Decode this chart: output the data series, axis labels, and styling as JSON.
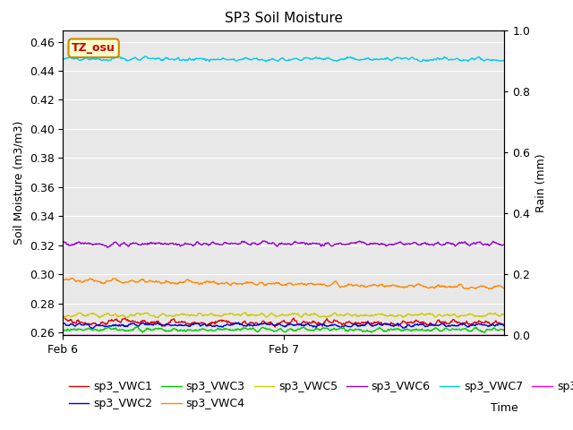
{
  "title": "SP3 Soil Moisture",
  "xlabel": "Time",
  "ylabel_left": "Soil Moisture (m3/m3)",
  "ylabel_right": "Rain (mm)",
  "ylim_left": [
    0.258,
    0.468
  ],
  "ylim_right": [
    0.0,
    1.0
  ],
  "yticks_left": [
    0.26,
    0.28,
    0.3,
    0.32,
    0.34,
    0.36,
    0.38,
    0.4,
    0.42,
    0.44,
    0.46
  ],
  "yticks_right": [
    0.0,
    0.2,
    0.4,
    0.6,
    0.8,
    1.0
  ],
  "xtick_positions": [
    0.0,
    0.5
  ],
  "xtick_labels": [
    "Feb 6",
    "Feb 7"
  ],
  "n_points": 800,
  "series": {
    "sp3_VWC1": {
      "color": "#dd0000",
      "mean": 0.267,
      "noise_amp": 0.003
    },
    "sp3_VWC2": {
      "color": "#0000dd",
      "mean": 0.265,
      "noise_amp": 0.002
    },
    "sp3_VWC3": {
      "color": "#00cc00",
      "mean": 0.262,
      "noise_amp": 0.002
    },
    "sp3_VWC4": {
      "color": "#ff8800",
      "mean": 0.296,
      "noise_amp": 0.002,
      "trend": -0.005
    },
    "sp3_VWC5": {
      "color": "#cccc00",
      "mean": 0.272,
      "noise_amp": 0.002
    },
    "sp3_VWC6": {
      "color": "#9900cc",
      "mean": 0.321,
      "noise_amp": 0.002
    },
    "sp3_VWC7": {
      "color": "#00ccee",
      "mean": 0.448,
      "noise_amp": 0.002
    },
    "sp3_Rain": {
      "color": "#ff00cc",
      "mean": 0.0,
      "noise_amp": 0.0
    }
  },
  "annotation_text": "TZ_osu",
  "annotation_color": "#cc0000",
  "annotation_bg": "#ffffcc",
  "annotation_edge": "#cc8800",
  "bg_color": "#e8e8e8",
  "title_fontsize": 11,
  "label_fontsize": 9,
  "tick_fontsize": 9,
  "legend_fontsize": 9
}
